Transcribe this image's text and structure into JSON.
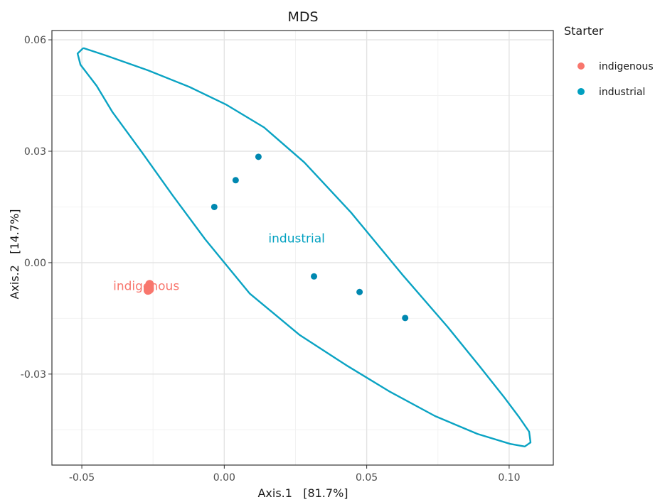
{
  "chart_data": {
    "type": "scatter",
    "title": "MDS",
    "xlabel": "Axis.1   [81.7%]",
    "ylabel": "Axis.2   [14.7%]",
    "xlim": [
      -0.0605,
      0.1155
    ],
    "ylim": [
      -0.0545,
      0.0625
    ],
    "x_ticks": [
      -0.05,
      0.0,
      0.05,
      0.1
    ],
    "x_tick_labels": [
      "-0.05",
      "0.00",
      "0.05",
      "0.10"
    ],
    "y_ticks": [
      -0.03,
      0.0,
      0.03,
      0.06
    ],
    "y_tick_labels": [
      "-0.03",
      "0.00",
      "0.03",
      "0.06"
    ],
    "grid": true,
    "legend": {
      "title": "Starter",
      "placement": "right",
      "entries": [
        {
          "label": "indigenous",
          "color": "#F8766D"
        },
        {
          "label": "industrial",
          "color": "#00A0C0"
        }
      ]
    },
    "series": [
      {
        "name": "indigenous",
        "color": "#F8766D",
        "x": [
          -0.0262,
          -0.0262,
          -0.0265,
          -0.0268,
          -0.0262,
          -0.0265,
          -0.0268,
          -0.0262
        ],
        "y": [
          -0.0058,
          -0.0062,
          -0.0066,
          -0.007,
          -0.0068,
          -0.0074,
          -0.0075,
          -0.0072
        ]
      },
      {
        "name": "industrial",
        "color": "#0088B0",
        "x": [
          -0.0035,
          0.004,
          0.012,
          0.0315,
          0.0475,
          0.0635
        ],
        "y": [
          0.015,
          0.0222,
          0.0285,
          -0.0037,
          -0.0079,
          -0.0149
        ]
      }
    ],
    "annotations": [
      {
        "text": "indigenous",
        "x": -0.039,
        "y": -0.0062,
        "color": "#F8766D"
      },
      {
        "text": "industrial",
        "x": 0.0155,
        "y": 0.0066,
        "color": "#00A0C0"
      }
    ],
    "ellipse": {
      "series": "industrial",
      "color": "#0AA3C3",
      "points": [
        [
          -0.0495,
          0.0578
        ],
        [
          -0.0412,
          0.0557
        ],
        [
          -0.0268,
          0.0518
        ],
        [
          -0.0122,
          0.0473
        ],
        [
          0.0008,
          0.0425
        ],
        [
          0.014,
          0.0364
        ],
        [
          0.0281,
          0.027
        ],
        [
          0.0445,
          0.0135
        ],
        [
          0.0626,
          -0.0033
        ],
        [
          0.0784,
          -0.0173
        ],
        [
          0.0895,
          -0.0278
        ],
        [
          0.0985,
          -0.0365
        ],
        [
          0.1035,
          -0.0416
        ],
        [
          0.107,
          -0.0455
        ],
        [
          0.1075,
          -0.0484
        ],
        [
          0.1055,
          -0.0495
        ],
        [
          0.1004,
          -0.0488
        ],
        [
          0.0889,
          -0.0461
        ],
        [
          0.074,
          -0.0413
        ],
        [
          0.0578,
          -0.0346
        ],
        [
          0.0428,
          -0.0276
        ],
        [
          0.0265,
          -0.0195
        ],
        [
          0.0089,
          -0.0083
        ],
        [
          -0.0067,
          0.0063
        ],
        [
          -0.0182,
          0.0182
        ],
        [
          -0.0288,
          0.0296
        ],
        [
          -0.0392,
          0.0405
        ],
        [
          -0.0448,
          0.0476
        ],
        [
          -0.0505,
          0.0533
        ],
        [
          -0.0515,
          0.0563
        ],
        [
          -0.0495,
          0.0578
        ]
      ]
    }
  }
}
